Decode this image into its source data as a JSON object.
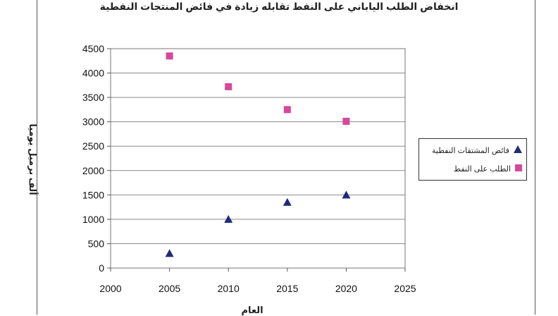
{
  "chart_data": {
    "type": "scatter",
    "title": "انخفاض الطلب الياباني على النفط تقابله زيادة في فائض المنتجات النفطية",
    "xlabel": "العام",
    "ylabel": "ألف برميل يوميا",
    "xlim": [
      2000,
      2025
    ],
    "ylim": [
      0,
      4500
    ],
    "xticks": [
      2000,
      2005,
      2010,
      2015,
      2020,
      2025
    ],
    "yticks": [
      0,
      500,
      1000,
      1500,
      2000,
      2500,
      3000,
      3500,
      4000,
      4500
    ],
    "grid": "horizontal",
    "legend_position": "right",
    "series": [
      {
        "name": "فائض المشتقات النفطية",
        "marker": "triangle",
        "color": "#1f2a7a",
        "x": [
          2005,
          2010,
          2015,
          2020
        ],
        "y": [
          300,
          1000,
          1350,
          1500
        ]
      },
      {
        "name": "الطلب على النفط",
        "marker": "square",
        "color": "#d9479a",
        "x": [
          2005,
          2010,
          2015,
          2020
        ],
        "y": [
          4350,
          3720,
          3250,
          3010
        ]
      }
    ]
  }
}
